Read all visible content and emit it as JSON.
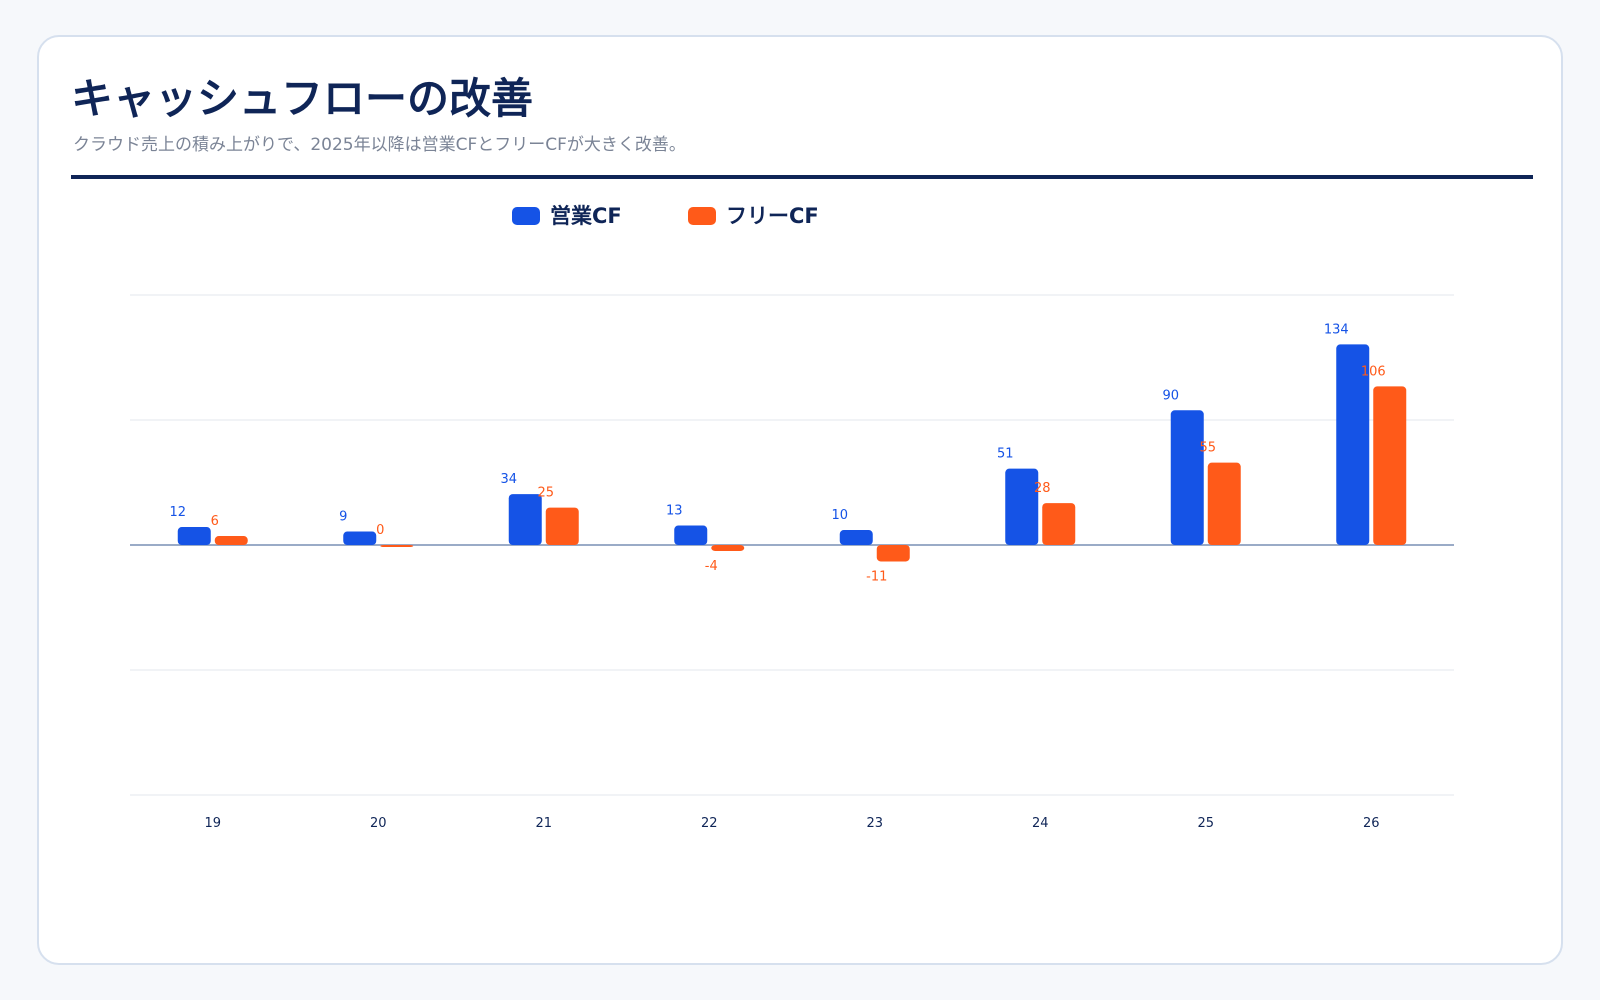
{
  "header": {
    "title": "キャッシュフローの改善",
    "subtitle": "クラウド売上の積み上がりで、2025年以降は営業CFとフリーCFが大きく改善。"
  },
  "colors": {
    "title": "#0f2557",
    "operating_cf": "#1553e6",
    "free_cf": "#ff5a19",
    "grid": "#e3e7ee",
    "zero_line": "#9aabc7"
  },
  "chart_data": {
    "type": "bar",
    "categories": [
      "19",
      "20",
      "21",
      "22",
      "23",
      "24",
      "25",
      "26"
    ],
    "series": [
      {
        "name": "営業CF",
        "values": [
          12,
          9,
          34,
          13,
          10,
          51,
          90,
          134
        ]
      },
      {
        "name": "フリーCF",
        "values": [
          6,
          0,
          25,
          -4,
          -11,
          28,
          55,
          106
        ]
      }
    ],
    "ylim": [
      -167,
      167
    ],
    "legend_position": "top-center",
    "grid": true
  }
}
